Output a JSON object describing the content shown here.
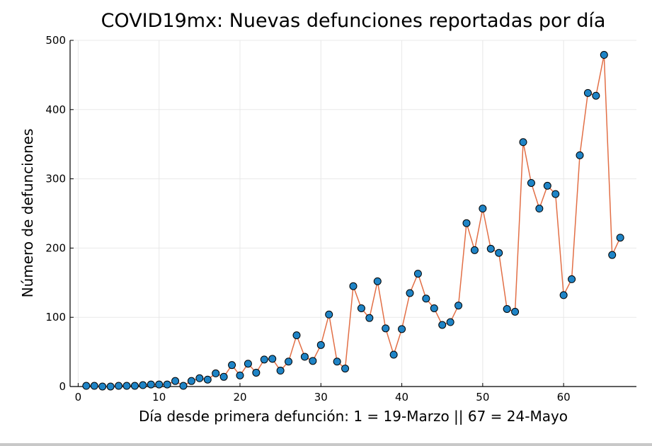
{
  "colors": {
    "line": "#e26f46",
    "marker_fill": "#1f84c6",
    "marker_stroke": "#000000",
    "grid": "#e8e8e8",
    "axis": "#000000",
    "text": "#000000"
  },
  "chart_data": {
    "type": "line",
    "title": "COVID19mx: Nuevas defunciones reportadas por día",
    "xlabel": "Día desde primera defunción: 1 = 19-Marzo || 67 = 24-Mayo",
    "ylabel": "Número de defunciones",
    "xlim": [
      -1,
      69
    ],
    "ylim": [
      0,
      500
    ],
    "xticks": [
      0,
      10,
      20,
      30,
      40,
      50,
      60
    ],
    "yticks": [
      0,
      100,
      200,
      300,
      400,
      500
    ],
    "grid": true,
    "legend": "none",
    "markers": true,
    "x": [
      1,
      2,
      3,
      4,
      5,
      6,
      7,
      8,
      9,
      10,
      11,
      12,
      13,
      14,
      15,
      16,
      17,
      18,
      19,
      20,
      21,
      22,
      23,
      24,
      25,
      26,
      27,
      28,
      29,
      30,
      31,
      32,
      33,
      34,
      35,
      36,
      37,
      38,
      39,
      40,
      41,
      42,
      43,
      44,
      45,
      46,
      47,
      48,
      49,
      50,
      51,
      52,
      53,
      54,
      55,
      56,
      57,
      58,
      59,
      60,
      61,
      62,
      63,
      64,
      65,
      66,
      67
    ],
    "y": [
      1,
      1,
      0,
      0,
      1,
      1,
      1,
      2,
      3,
      3,
      3,
      8,
      1,
      8,
      12,
      10,
      19,
      14,
      31,
      16,
      33,
      20,
      39,
      40,
      23,
      36,
      74,
      43,
      37,
      60,
      104,
      36,
      26,
      145,
      113,
      99,
      152,
      84,
      46,
      83,
      135,
      163,
      127,
      113,
      89,
      93,
      117,
      236,
      197,
      257,
      199,
      193,
      112,
      108,
      353,
      294,
      257,
      290,
      278,
      132,
      155,
      334,
      424,
      420,
      479,
      190,
      215
    ]
  }
}
